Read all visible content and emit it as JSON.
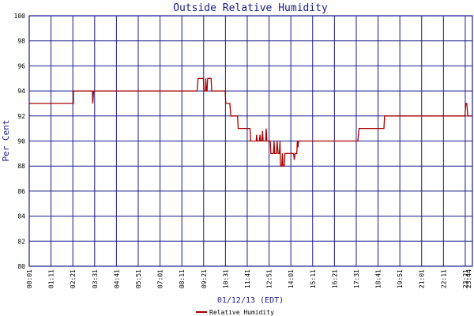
{
  "chart_data": {
    "type": "line",
    "title": "Outside Relative Humidity",
    "xlabel": "01/12/13 (EDT)",
    "ylabel": "Per Cent",
    "ylim": [
      80,
      100
    ],
    "yticks": [
      80,
      82,
      84,
      86,
      88,
      90,
      92,
      94,
      96,
      98,
      100
    ],
    "xlim": [
      1,
      1424
    ],
    "xtick_labels": [
      "00:01",
      "01:11",
      "02:21",
      "03:31",
      "04:41",
      "05:51",
      "07:01",
      "08:11",
      "09:21",
      "10:31",
      "11:41",
      "12:51",
      "14:01",
      "15:11",
      "16:21",
      "17:31",
      "18:41",
      "19:51",
      "21:01",
      "22:11",
      "23:21",
      "23:44"
    ],
    "xticks": [
      1,
      71,
      141,
      211,
      281,
      351,
      421,
      491,
      561,
      631,
      701,
      771,
      841,
      911,
      981,
      1051,
      1121,
      1191,
      1261,
      1331,
      1401,
      1424
    ],
    "grid": true,
    "legend_position": "bottom-center",
    "colors": {
      "series": "#aa0000",
      "grid": "#1a1a8c",
      "text": "#1a1a8c"
    },
    "series": [
      {
        "name": "Relative Humidity",
        "points": [
          [
            1,
            93
          ],
          [
            143,
            93
          ],
          [
            143,
            94
          ],
          [
            204,
            94
          ],
          [
            205,
            93
          ],
          [
            208,
            94
          ],
          [
            540,
            94
          ],
          [
            543,
            95
          ],
          [
            560,
            95
          ],
          [
            562,
            94
          ],
          [
            567,
            94
          ],
          [
            568,
            95
          ],
          [
            570,
            94
          ],
          [
            572,
            94
          ],
          [
            574,
            95
          ],
          [
            585,
            95
          ],
          [
            587,
            94
          ],
          [
            630,
            94
          ],
          [
            632,
            93
          ],
          [
            645,
            93
          ],
          [
            648,
            92
          ],
          [
            670,
            92
          ],
          [
            672,
            91
          ],
          [
            710,
            91
          ],
          [
            712,
            90
          ],
          [
            730,
            90
          ],
          [
            731,
            90.5
          ],
          [
            733,
            90
          ],
          [
            740,
            90
          ],
          [
            742,
            90.5
          ],
          [
            744,
            90
          ],
          [
            748,
            90
          ],
          [
            750,
            90.8
          ],
          [
            752,
            90
          ],
          [
            760,
            90
          ],
          [
            762,
            91
          ],
          [
            764,
            90
          ],
          [
            775,
            90
          ],
          [
            777,
            89
          ],
          [
            785,
            89
          ],
          [
            787,
            90
          ],
          [
            789,
            89
          ],
          [
            795,
            89
          ],
          [
            797,
            90
          ],
          [
            800,
            89
          ],
          [
            804,
            89
          ],
          [
            806,
            90
          ],
          [
            808,
            88
          ],
          [
            812,
            88
          ],
          [
            814,
            89
          ],
          [
            816,
            88
          ],
          [
            820,
            88
          ],
          [
            822,
            89
          ],
          [
            850,
            89
          ],
          [
            852,
            88.5
          ],
          [
            855,
            89
          ],
          [
            860,
            89
          ],
          [
            862,
            90
          ],
          [
            864,
            89.5
          ],
          [
            866,
            90
          ],
          [
            1056,
            90
          ],
          [
            1060,
            91
          ],
          [
            1140,
            91
          ],
          [
            1142,
            92
          ],
          [
            1400,
            92
          ],
          [
            1403,
            93
          ],
          [
            1406,
            93
          ],
          [
            1409,
            92
          ],
          [
            1424,
            92
          ]
        ]
      }
    ]
  }
}
